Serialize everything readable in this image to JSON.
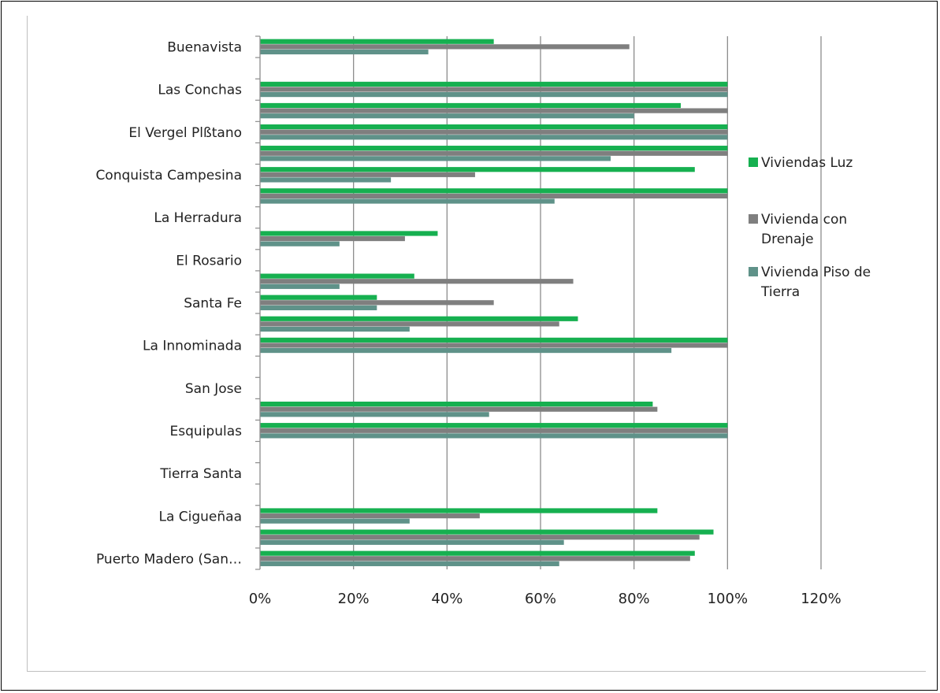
{
  "chart_data": {
    "type": "bar",
    "orientation": "horizontal",
    "xlim": [
      0,
      1.2
    ],
    "ticks": [
      "0%",
      "20%",
      "40%",
      "60%",
      "80%",
      "100%",
      "120%"
    ],
    "categories": [
      "Buenavista",
      "",
      "Las Conchas",
      "",
      "El Vergel Plßtano",
      "",
      "Conquista Campesina",
      "",
      "La Herradura",
      "",
      "El Rosario",
      "",
      "Santa Fe",
      "",
      "La Innominada",
      "",
      "San Jose",
      "",
      "Esquipulas",
      "",
      "Tierra Santa",
      "",
      "La Cigueñaa",
      "",
      "Puerto Madero (San…"
    ],
    "series": [
      {
        "name": "Viviendas Luz",
        "color": "#16b050",
        "values": [
          0.5,
          null,
          1.0,
          0.9,
          1.0,
          1.0,
          0.93,
          1.0,
          null,
          0.38,
          null,
          0.33,
          0.25,
          0.68,
          1.0,
          null,
          null,
          0.84,
          1.0,
          null,
          null,
          null,
          0.85,
          0.97,
          0.93
        ]
      },
      {
        "name": "Vivienda con Drenaje",
        "color": "#7f7f7f",
        "values": [
          0.79,
          null,
          1.0,
          1.0,
          1.0,
          1.0,
          0.46,
          1.0,
          null,
          0.31,
          null,
          0.67,
          0.5,
          0.64,
          1.0,
          null,
          null,
          0.85,
          1.0,
          null,
          null,
          null,
          0.47,
          0.94,
          0.92
        ]
      },
      {
        "name": "Vivienda Piso de Tierra",
        "color": "#5f9289",
        "values": [
          0.36,
          null,
          1.0,
          0.8,
          1.0,
          0.75,
          0.28,
          0.63,
          null,
          0.17,
          null,
          0.17,
          0.25,
          0.32,
          0.88,
          null,
          null,
          0.49,
          1.0,
          null,
          null,
          null,
          0.32,
          0.65,
          0.64
        ]
      }
    ],
    "legend_lines": [
      [
        "Viviendas Luz"
      ],
      [
        "Vivienda con",
        "Drenaje"
      ],
      [
        "Vivienda Piso de",
        "Tierra"
      ]
    ],
    "legend_position": "right",
    "grid": true
  }
}
